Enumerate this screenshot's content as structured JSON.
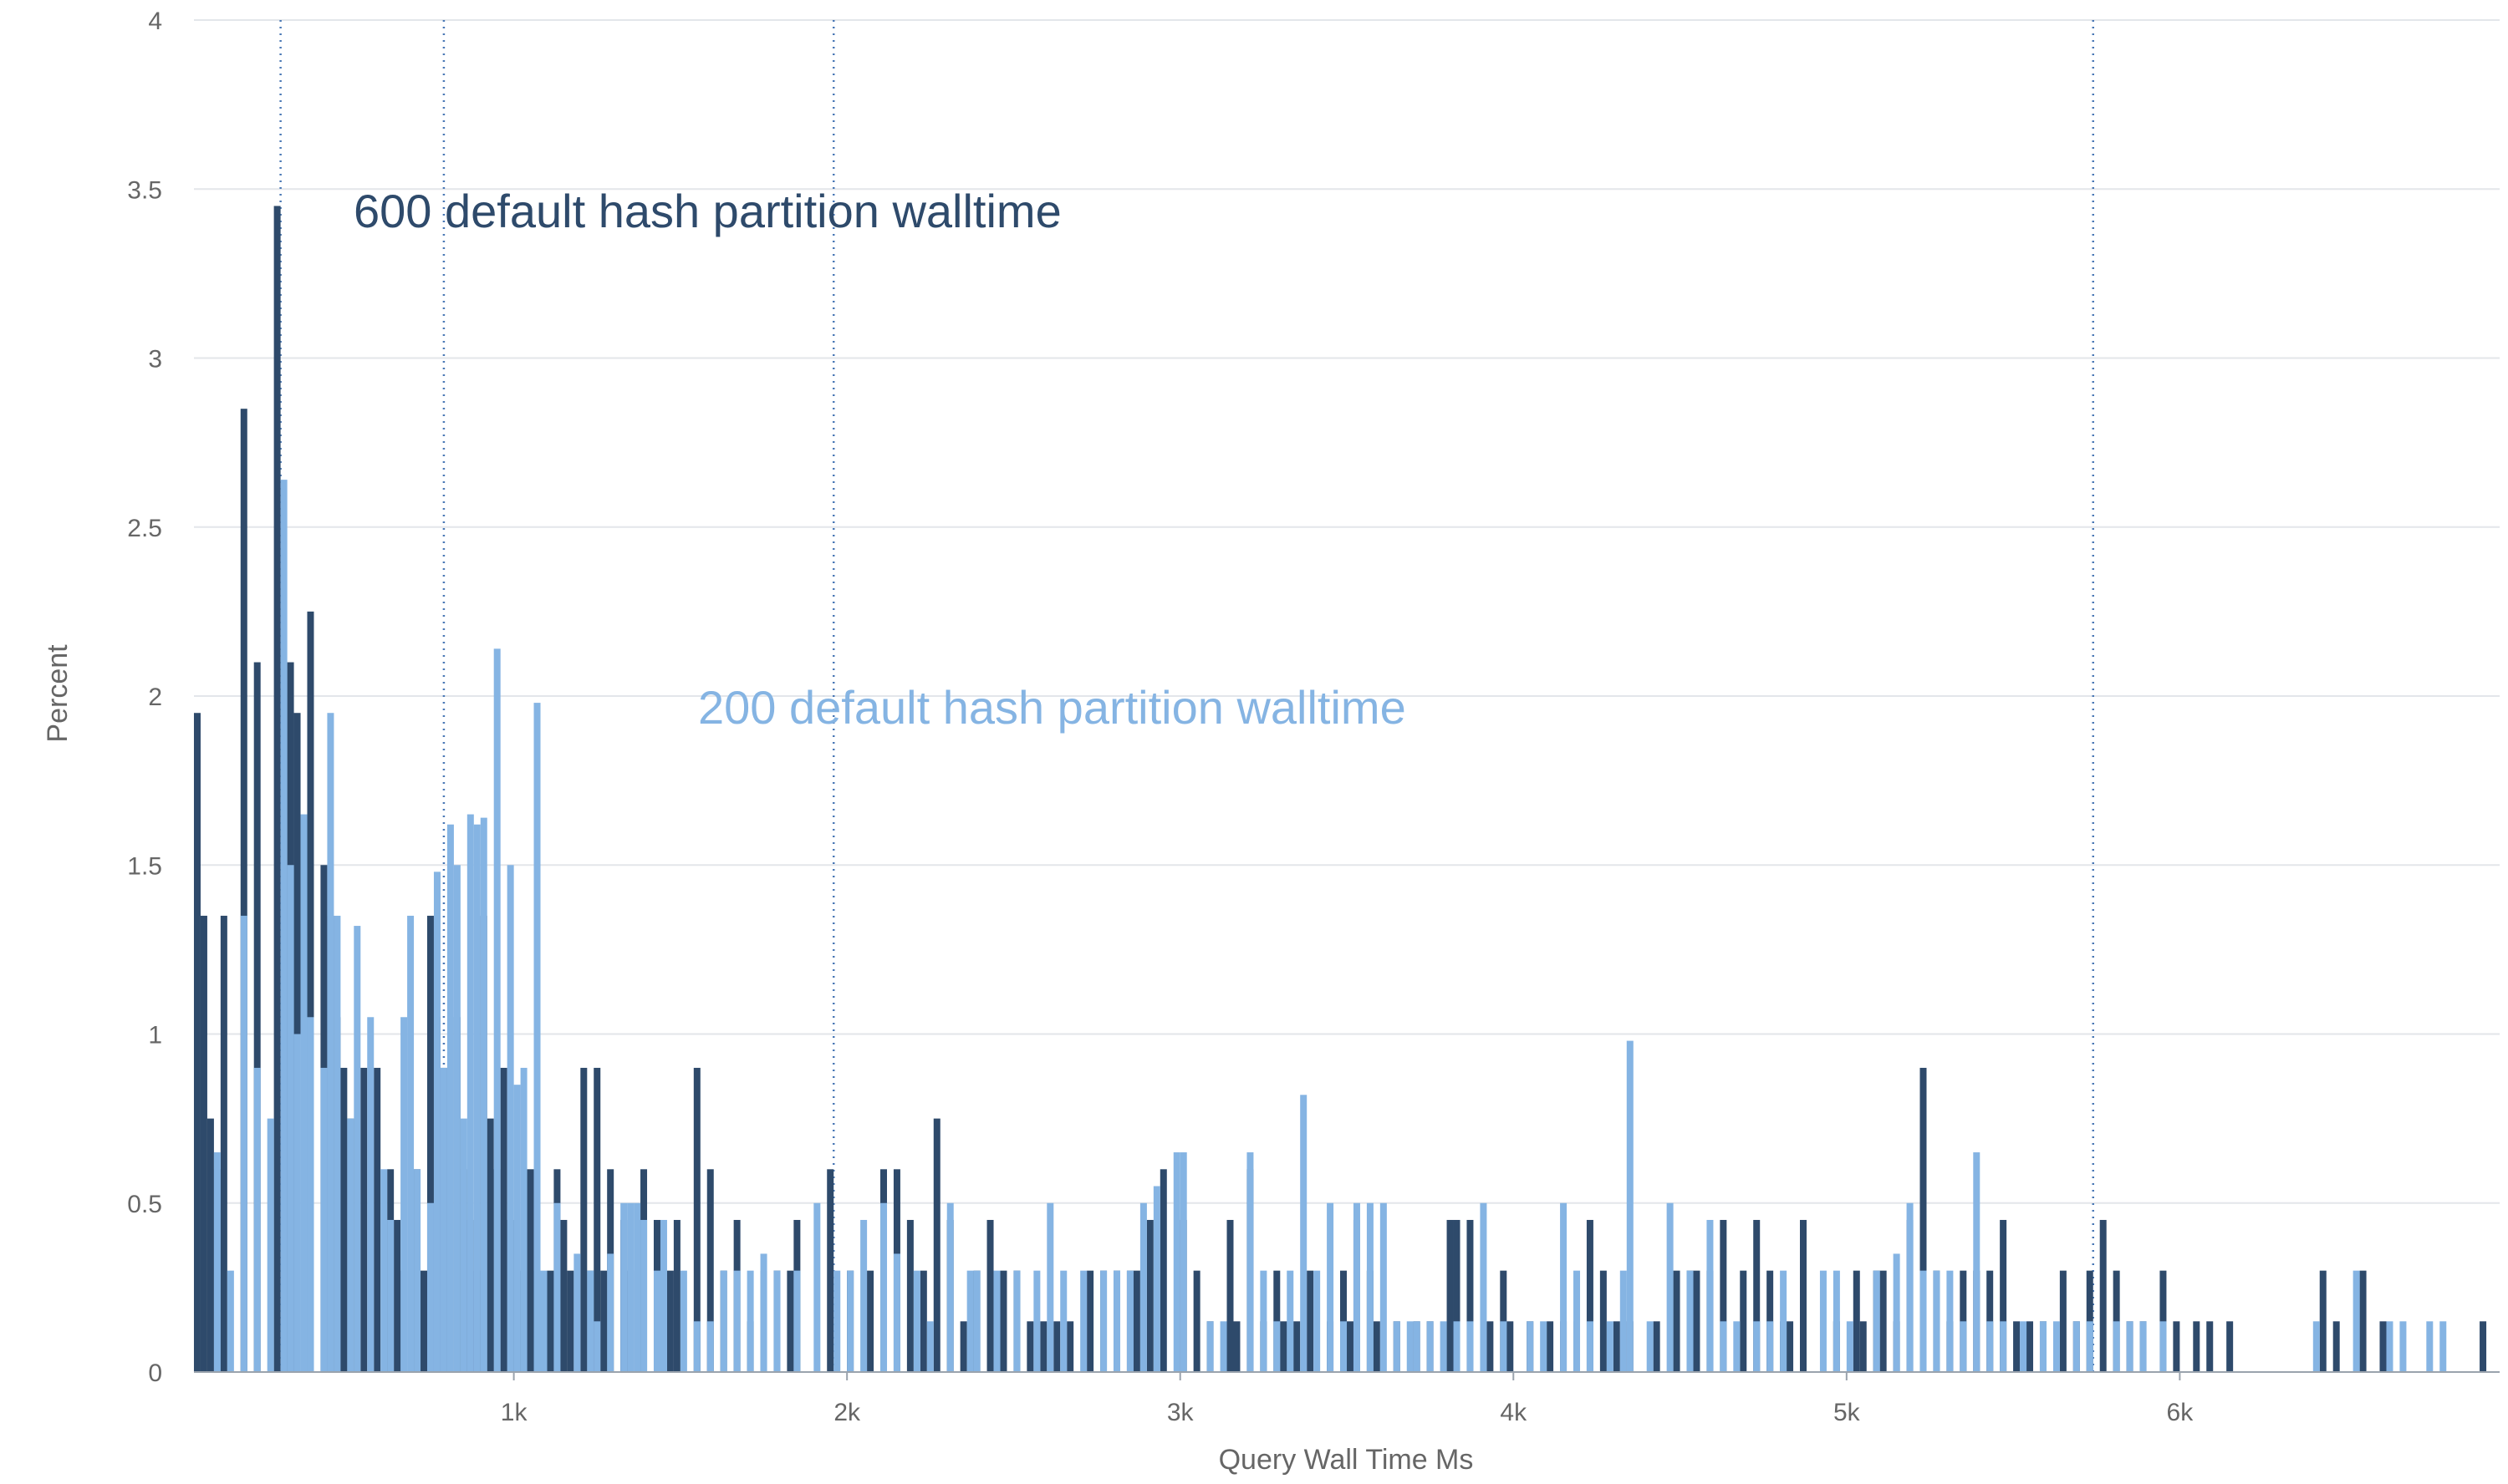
{
  "chart_data": {
    "type": "bar",
    "xlabel": "Query Wall Time Ms",
    "ylabel": "Percent",
    "xlim": [
      40,
      6960
    ],
    "ylim": [
      0,
      4
    ],
    "x_ticks": [
      1000,
      2000,
      3000,
      4000,
      5000,
      6000
    ],
    "x_tick_labels": [
      "1k",
      "2k",
      "3k",
      "4k",
      "5k",
      "6k"
    ],
    "y_ticks": [
      0,
      0.5,
      1,
      1.5,
      2,
      2.5,
      3,
      3.5,
      4
    ],
    "y_tick_labels": [
      "0",
      "0.5",
      "1",
      "1.5",
      "2",
      "2.5",
      "3",
      "3.5",
      "4"
    ],
    "grid": true,
    "bin_width": 20,
    "reference_lines_x": [
      300,
      790,
      1960,
      5740
    ],
    "annotations": [
      {
        "text": "600 default hash partition walltime",
        "series": 0
      },
      {
        "text": "200 default hash partition walltime",
        "series": 1
      }
    ],
    "series": [
      {
        "color": "#2e4a6b",
        "points": [
          [
            60,
            1.95
          ],
          [
            80,
            1.35
          ],
          [
            100,
            0.75
          ],
          [
            120,
            0.6
          ],
          [
            140,
            1.35
          ],
          [
            200,
            2.85
          ],
          [
            240,
            2.1
          ],
          [
            300,
            3.45
          ],
          [
            340,
            2.1
          ],
          [
            360,
            1.95
          ],
          [
            400,
            2.25
          ],
          [
            440,
            1.5
          ],
          [
            460,
            1.35
          ],
          [
            480,
            1.05
          ],
          [
            500,
            0.9
          ],
          [
            520,
            0.75
          ],
          [
            560,
            0.9
          ],
          [
            600,
            0.9
          ],
          [
            640,
            0.6
          ],
          [
            660,
            0.45
          ],
          [
            680,
            0.3
          ],
          [
            720,
            0.6
          ],
          [
            740,
            0.3
          ],
          [
            760,
            1.35
          ],
          [
            780,
            1.05
          ],
          [
            800,
            0.9
          ],
          [
            840,
            1.05
          ],
          [
            860,
            0.6
          ],
          [
            880,
            0.45
          ],
          [
            900,
            0.3
          ],
          [
            920,
            1.35
          ],
          [
            940,
            0.75
          ],
          [
            960,
            0.6
          ],
          [
            980,
            0.9
          ],
          [
            1000,
            0.45
          ],
          [
            1020,
            0.45
          ],
          [
            1040,
            0.3
          ],
          [
            1060,
            0.6
          ],
          [
            1080,
            0.3
          ],
          [
            1120,
            0.3
          ],
          [
            1140,
            0.6
          ],
          [
            1160,
            0.45
          ],
          [
            1180,
            0.3
          ],
          [
            1220,
            0.9
          ],
          [
            1240,
            0.3
          ],
          [
            1260,
            0.9
          ],
          [
            1280,
            0.3
          ],
          [
            1300,
            0.6
          ],
          [
            1340,
            0.45
          ],
          [
            1360,
            0.3
          ],
          [
            1400,
            0.6
          ],
          [
            1440,
            0.45
          ],
          [
            1480,
            0.3
          ],
          [
            1500,
            0.45
          ],
          [
            1560,
            0.9
          ],
          [
            1600,
            0.6
          ],
          [
            1640,
            0.3
          ],
          [
            1680,
            0.45
          ],
          [
            1720,
            0.15
          ],
          [
            1760,
            0.3
          ],
          [
            1800,
            0.3
          ],
          [
            1840,
            0.3
          ],
          [
            1860,
            0.45
          ],
          [
            1960,
            0.6
          ],
          [
            2020,
            0.3
          ],
          [
            2080,
            0.3
          ],
          [
            2120,
            0.6
          ],
          [
            2160,
            0.6
          ],
          [
            2200,
            0.45
          ],
          [
            2240,
            0.3
          ],
          [
            2280,
            0.75
          ],
          [
            2320,
            0.45
          ],
          [
            2360,
            0.15
          ],
          [
            2400,
            0.3
          ],
          [
            2440,
            0.45
          ],
          [
            2480,
            0.3
          ],
          [
            2520,
            0.3
          ],
          [
            2560,
            0.15
          ],
          [
            2600,
            0.15
          ],
          [
            2640,
            0.15
          ],
          [
            2680,
            0.15
          ],
          [
            2740,
            0.3
          ],
          [
            2780,
            0.3
          ],
          [
            2820,
            0.3
          ],
          [
            2860,
            0.3
          ],
          [
            2880,
            0.3
          ],
          [
            2920,
            0.45
          ],
          [
            2960,
            0.6
          ],
          [
            3020,
            0.45
          ],
          [
            3060,
            0.3
          ],
          [
            3100,
            0.15
          ],
          [
            3160,
            0.45
          ],
          [
            3180,
            0.15
          ],
          [
            3220,
            0.6
          ],
          [
            3260,
            0.15
          ],
          [
            3300,
            0.3
          ],
          [
            3320,
            0.15
          ],
          [
            3340,
            0.15
          ],
          [
            3360,
            0.15
          ],
          [
            3400,
            0.3
          ],
          [
            3460,
            0.15
          ],
          [
            3500,
            0.3
          ],
          [
            3520,
            0.15
          ],
          [
            3540,
            0.45
          ],
          [
            3580,
            0.3
          ],
          [
            3600,
            0.15
          ],
          [
            3660,
            0.15
          ],
          [
            3720,
            0.15
          ],
          [
            3760,
            0.15
          ],
          [
            3820,
            0.45
          ],
          [
            3840,
            0.45
          ],
          [
            3880,
            0.45
          ],
          [
            3940,
            0.15
          ],
          [
            3980,
            0.3
          ],
          [
            4000,
            0.15
          ],
          [
            4060,
            0.15
          ],
          [
            4120,
            0.15
          ],
          [
            4160,
            0.15
          ],
          [
            4200,
            0.15
          ],
          [
            4240,
            0.45
          ],
          [
            4280,
            0.3
          ],
          [
            4320,
            0.15
          ],
          [
            4360,
            0.15
          ],
          [
            4440,
            0.15
          ],
          [
            4500,
            0.3
          ],
          [
            4540,
            0.3
          ],
          [
            4560,
            0.3
          ],
          [
            4600,
            0.3
          ],
          [
            4640,
            0.45
          ],
          [
            4700,
            0.3
          ],
          [
            4740,
            0.45
          ],
          [
            4780,
            0.3
          ],
          [
            4820,
            0.15
          ],
          [
            4840,
            0.15
          ],
          [
            4880,
            0.45
          ],
          [
            4980,
            0.15
          ],
          [
            5040,
            0.3
          ],
          [
            5060,
            0.15
          ],
          [
            5100,
            0.3
          ],
          [
            5120,
            0.3
          ],
          [
            5160,
            0.15
          ],
          [
            5200,
            0.45
          ],
          [
            5240,
            0.9
          ],
          [
            5280,
            0.3
          ],
          [
            5320,
            0.15
          ],
          [
            5360,
            0.3
          ],
          [
            5400,
            0.3
          ],
          [
            5440,
            0.3
          ],
          [
            5480,
            0.45
          ],
          [
            5520,
            0.15
          ],
          [
            5560,
            0.15
          ],
          [
            5600,
            0.15
          ],
          [
            5660,
            0.3
          ],
          [
            5700,
            0.15
          ],
          [
            5740,
            0.3
          ],
          [
            5780,
            0.45
          ],
          [
            5820,
            0.3
          ],
          [
            5860,
            0.15
          ],
          [
            5900,
            0.15
          ],
          [
            5960,
            0.3
          ],
          [
            6000,
            0.15
          ],
          [
            6060,
            0.15
          ],
          [
            6100,
            0.15
          ],
          [
            6160,
            0.15
          ],
          [
            6440,
            0.3
          ],
          [
            6480,
            0.15
          ],
          [
            6560,
            0.3
          ],
          [
            6620,
            0.15
          ],
          [
            6920,
            0.15
          ]
        ]
      },
      {
        "color": "#85b4e3",
        "points": [
          [
            100,
            0.65
          ],
          [
            140,
            0.3
          ],
          [
            180,
            1.35
          ],
          [
            220,
            0.9
          ],
          [
            260,
            0.75
          ],
          [
            300,
            2.64
          ],
          [
            320,
            1.5
          ],
          [
            340,
            1.0
          ],
          [
            360,
            1.65
          ],
          [
            380,
            1.05
          ],
          [
            420,
            0.9
          ],
          [
            440,
            1.95
          ],
          [
            460,
            1.35
          ],
          [
            500,
            0.75
          ],
          [
            520,
            1.32
          ],
          [
            560,
            1.05
          ],
          [
            600,
            0.6
          ],
          [
            620,
            0.45
          ],
          [
            660,
            1.05
          ],
          [
            680,
            1.35
          ],
          [
            700,
            0.6
          ],
          [
            740,
            0.5
          ],
          [
            760,
            1.48
          ],
          [
            780,
            0.9
          ],
          [
            800,
            1.62
          ],
          [
            820,
            1.5
          ],
          [
            840,
            0.75
          ],
          [
            860,
            1.65
          ],
          [
            880,
            1.62
          ],
          [
            900,
            1.64
          ],
          [
            940,
            2.14
          ],
          [
            980,
            1.5
          ],
          [
            1000,
            0.85
          ],
          [
            1020,
            0.9
          ],
          [
            1060,
            1.98
          ],
          [
            1080,
            0.3
          ],
          [
            1120,
            0.5
          ],
          [
            1180,
            0.35
          ],
          [
            1220,
            0.3
          ],
          [
            1240,
            0.15
          ],
          [
            1280,
            0.35
          ],
          [
            1320,
            0.5
          ],
          [
            1340,
            0.5
          ],
          [
            1360,
            0.5
          ],
          [
            1380,
            0.45
          ],
          [
            1420,
            0.3
          ],
          [
            1440,
            0.45
          ],
          [
            1500,
            0.3
          ],
          [
            1540,
            0.15
          ],
          [
            1580,
            0.15
          ],
          [
            1620,
            0.3
          ],
          [
            1660,
            0.3
          ],
          [
            1700,
            0.3
          ],
          [
            1740,
            0.35
          ],
          [
            1780,
            0.3
          ],
          [
            1840,
            0.3
          ],
          [
            1900,
            0.5
          ],
          [
            1960,
            0.3
          ],
          [
            2000,
            0.3
          ],
          [
            2040,
            0.45
          ],
          [
            2100,
            0.5
          ],
          [
            2140,
            0.35
          ],
          [
            2200,
            0.3
          ],
          [
            2240,
            0.15
          ],
          [
            2300,
            0.5
          ],
          [
            2360,
            0.3
          ],
          [
            2380,
            0.3
          ],
          [
            2440,
            0.3
          ],
          [
            2500,
            0.3
          ],
          [
            2560,
            0.3
          ],
          [
            2600,
            0.5
          ],
          [
            2640,
            0.3
          ],
          [
            2700,
            0.3
          ],
          [
            2760,
            0.3
          ],
          [
            2800,
            0.3
          ],
          [
            2840,
            0.3
          ],
          [
            2880,
            0.5
          ],
          [
            2920,
            0.55
          ],
          [
            2980,
            0.65
          ],
          [
            3000,
            0.65
          ],
          [
            3080,
            0.15
          ],
          [
            3120,
            0.15
          ],
          [
            3200,
            0.65
          ],
          [
            3240,
            0.3
          ],
          [
            3280,
            0.15
          ],
          [
            3320,
            0.3
          ],
          [
            3360,
            0.82
          ],
          [
            3400,
            0.3
          ],
          [
            3440,
            0.5
          ],
          [
            3480,
            0.15
          ],
          [
            3520,
            0.5
          ],
          [
            3560,
            0.5
          ],
          [
            3600,
            0.5
          ],
          [
            3640,
            0.15
          ],
          [
            3680,
            0.15
          ],
          [
            3700,
            0.15
          ],
          [
            3740,
            0.15
          ],
          [
            3780,
            0.15
          ],
          [
            3820,
            0.15
          ],
          [
            3860,
            0.15
          ],
          [
            3900,
            0.5
          ],
          [
            3960,
            0.15
          ],
          [
            4040,
            0.15
          ],
          [
            4080,
            0.15
          ],
          [
            4140,
            0.5
          ],
          [
            4180,
            0.3
          ],
          [
            4220,
            0.15
          ],
          [
            4280,
            0.15
          ],
          [
            4320,
            0.3
          ],
          [
            4340,
            0.98
          ],
          [
            4400,
            0.15
          ],
          [
            4460,
            0.5
          ],
          [
            4520,
            0.3
          ],
          [
            4580,
            0.45
          ],
          [
            4620,
            0.15
          ],
          [
            4660,
            0.15
          ],
          [
            4720,
            0.15
          ],
          [
            4760,
            0.15
          ],
          [
            4800,
            0.3
          ],
          [
            4920,
            0.3
          ],
          [
            4960,
            0.3
          ],
          [
            5000,
            0.15
          ],
          [
            5080,
            0.3
          ],
          [
            5140,
            0.35
          ],
          [
            5180,
            0.5
          ],
          [
            5220,
            0.3
          ],
          [
            5260,
            0.3
          ],
          [
            5300,
            0.3
          ],
          [
            5340,
            0.15
          ],
          [
            5380,
            0.65
          ],
          [
            5420,
            0.15
          ],
          [
            5460,
            0.15
          ],
          [
            5520,
            0.15
          ],
          [
            5580,
            0.15
          ],
          [
            5620,
            0.15
          ],
          [
            5680,
            0.15
          ],
          [
            5720,
            0.15
          ],
          [
            5800,
            0.15
          ],
          [
            5840,
            0.15
          ],
          [
            5880,
            0.15
          ],
          [
            5940,
            0.15
          ],
          [
            6400,
            0.15
          ],
          [
            6520,
            0.3
          ],
          [
            6620,
            0.15
          ],
          [
            6660,
            0.15
          ],
          [
            6740,
            0.15
          ],
          [
            6780,
            0.15
          ]
        ]
      }
    ]
  }
}
